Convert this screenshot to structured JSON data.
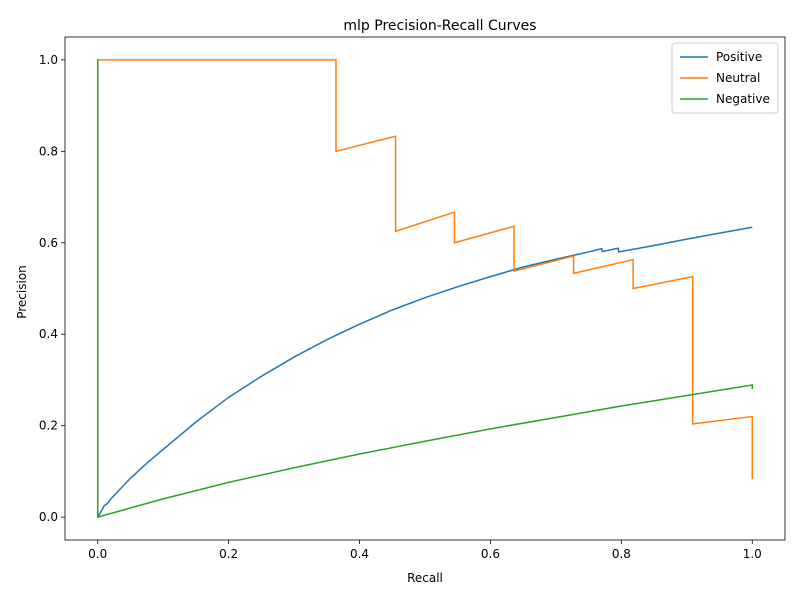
{
  "chart_data": {
    "type": "line",
    "title": "mlp Precision-Recall Curves",
    "xlabel": "Recall",
    "ylabel": "Precision",
    "xlim": [
      -0.05,
      1.05
    ],
    "ylim": [
      -0.05,
      1.05
    ],
    "xticks": [
      0.0,
      0.2,
      0.4,
      0.6,
      0.8,
      1.0
    ],
    "xtick_labels": [
      "0.0",
      "0.2",
      "0.4",
      "0.6",
      "0.8",
      "1.0"
    ],
    "yticks": [
      0.0,
      0.2,
      0.4,
      0.6,
      0.8,
      1.0
    ],
    "ytick_labels": [
      "0.0",
      "0.2",
      "0.4",
      "0.6",
      "0.8",
      "1.0"
    ],
    "grid": false,
    "legend_position": "top-right",
    "series": [
      {
        "name": "Positive",
        "color": "#1f77b4",
        "points": [
          [
            0.0,
            0.0
          ],
          [
            0.005,
            0.012
          ],
          [
            0.01,
            0.025
          ],
          [
            0.015,
            0.03
          ],
          [
            0.02,
            0.04
          ],
          [
            0.03,
            0.055
          ],
          [
            0.04,
            0.07
          ],
          [
            0.05,
            0.085
          ],
          [
            0.075,
            0.118
          ],
          [
            0.1,
            0.148
          ],
          [
            0.15,
            0.208
          ],
          [
            0.2,
            0.262
          ],
          [
            0.25,
            0.308
          ],
          [
            0.3,
            0.35
          ],
          [
            0.35,
            0.388
          ],
          [
            0.4,
            0.422
          ],
          [
            0.45,
            0.453
          ],
          [
            0.5,
            0.48
          ],
          [
            0.55,
            0.504
          ],
          [
            0.6,
            0.526
          ],
          [
            0.65,
            0.547
          ],
          [
            0.7,
            0.564
          ],
          [
            0.75,
            0.58
          ],
          [
            0.77,
            0.587
          ],
          [
            0.771,
            0.581
          ],
          [
            0.795,
            0.588
          ],
          [
            0.796,
            0.58
          ],
          [
            0.85,
            0.594
          ],
          [
            0.9,
            0.608
          ],
          [
            0.95,
            0.621
          ],
          [
            1.0,
            0.634
          ]
        ]
      },
      {
        "name": "Neutral",
        "color": "#ff7f0e",
        "points": [
          [
            0.0,
            0.0
          ],
          [
            0.0,
            1.0
          ],
          [
            0.364,
            1.0
          ],
          [
            0.364,
            0.8
          ],
          [
            0.455,
            0.833
          ],
          [
            0.455,
            0.625
          ],
          [
            0.545,
            0.667
          ],
          [
            0.545,
            0.6
          ],
          [
            0.636,
            0.636
          ],
          [
            0.636,
            0.538
          ],
          [
            0.727,
            0.571
          ],
          [
            0.727,
            0.533
          ],
          [
            0.818,
            0.563
          ],
          [
            0.818,
            0.5
          ],
          [
            0.909,
            0.526
          ],
          [
            0.909,
            0.204
          ],
          [
            1.0,
            0.22
          ],
          [
            1.0,
            0.083
          ]
        ]
      },
      {
        "name": "Negative",
        "color": "#2ca02c",
        "points": [
          [
            0.0,
            0.0
          ],
          [
            0.0,
            1.0
          ],
          [
            0.0,
            0.0
          ],
          [
            0.1,
            0.04
          ],
          [
            0.2,
            0.076
          ],
          [
            0.3,
            0.108
          ],
          [
            0.4,
            0.138
          ],
          [
            0.5,
            0.166
          ],
          [
            0.6,
            0.193
          ],
          [
            0.7,
            0.218
          ],
          [
            0.8,
            0.243
          ],
          [
            0.9,
            0.266
          ],
          [
            1.0,
            0.289
          ],
          [
            1.0,
            0.28
          ]
        ]
      }
    ]
  }
}
